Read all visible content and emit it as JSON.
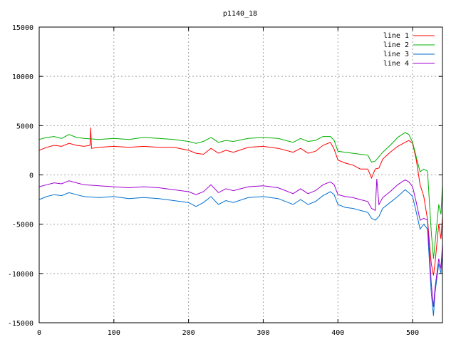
{
  "chart_data": {
    "type": "line",
    "title": "p1140_18",
    "xlabel": "",
    "ylabel": "",
    "xlim": [
      0,
      540
    ],
    "ylim": [
      -15000,
      15000
    ],
    "grid": true,
    "legend_position": "top-right",
    "x_ticks": [
      0,
      100,
      200,
      300,
      400,
      500
    ],
    "y_ticks": [
      -15000,
      -10000,
      -5000,
      0,
      5000,
      10000,
      15000
    ],
    "x_tick_labels": [
      "0",
      "100",
      "200",
      "300",
      "400",
      "500"
    ],
    "y_tick_labels": [
      "-15000",
      "-10000",
      "-5000",
      "0",
      "5000",
      "10000",
      "15000"
    ],
    "series": [
      {
        "name": "line 1",
        "color": "#ff0000",
        "points": [
          [
            0,
            2500
          ],
          [
            10,
            2800
          ],
          [
            20,
            3000
          ],
          [
            30,
            2900
          ],
          [
            40,
            3200
          ],
          [
            50,
            3000
          ],
          [
            60,
            2900
          ],
          [
            68,
            3000
          ],
          [
            69,
            4800
          ],
          [
            70,
            2700
          ],
          [
            80,
            2800
          ],
          [
            100,
            2900
          ],
          [
            120,
            2800
          ],
          [
            140,
            2900
          ],
          [
            160,
            2800
          ],
          [
            180,
            2800
          ],
          [
            200,
            2500
          ],
          [
            210,
            2200
          ],
          [
            220,
            2100
          ],
          [
            230,
            2700
          ],
          [
            240,
            2200
          ],
          [
            250,
            2500
          ],
          [
            260,
            2300
          ],
          [
            280,
            2800
          ],
          [
            300,
            2900
          ],
          [
            320,
            2700
          ],
          [
            340,
            2300
          ],
          [
            350,
            2700
          ],
          [
            360,
            2200
          ],
          [
            370,
            2400
          ],
          [
            380,
            3000
          ],
          [
            390,
            3300
          ],
          [
            395,
            2600
          ],
          [
            400,
            1500
          ],
          [
            410,
            1200
          ],
          [
            420,
            1000
          ],
          [
            430,
            600
          ],
          [
            440,
            600
          ],
          [
            445,
            -300
          ],
          [
            450,
            600
          ],
          [
            455,
            700
          ],
          [
            460,
            1600
          ],
          [
            470,
            2300
          ],
          [
            480,
            2900
          ],
          [
            490,
            3300
          ],
          [
            495,
            3500
          ],
          [
            500,
            3200
          ],
          [
            505,
            1500
          ],
          [
            510,
            -1000
          ],
          [
            515,
            -2200
          ],
          [
            520,
            -4500
          ],
          [
            525,
            -9000
          ],
          [
            528,
            -10200
          ],
          [
            530,
            -9000
          ],
          [
            535,
            -5000
          ],
          [
            538,
            -6500
          ],
          [
            540,
            -4200
          ]
        ]
      },
      {
        "name": "line 2",
        "color": "#00b000",
        "points": [
          [
            0,
            3600
          ],
          [
            10,
            3800
          ],
          [
            20,
            3900
          ],
          [
            30,
            3700
          ],
          [
            40,
            4100
          ],
          [
            50,
            3800
          ],
          [
            60,
            3700
          ],
          [
            80,
            3600
          ],
          [
            100,
            3700
          ],
          [
            120,
            3600
          ],
          [
            140,
            3800
          ],
          [
            160,
            3700
          ],
          [
            180,
            3600
          ],
          [
            200,
            3400
          ],
          [
            210,
            3200
          ],
          [
            220,
            3400
          ],
          [
            230,
            3800
          ],
          [
            240,
            3300
          ],
          [
            250,
            3500
          ],
          [
            260,
            3400
          ],
          [
            280,
            3700
          ],
          [
            300,
            3800
          ],
          [
            320,
            3700
          ],
          [
            340,
            3300
          ],
          [
            350,
            3700
          ],
          [
            360,
            3400
          ],
          [
            370,
            3500
          ],
          [
            380,
            3900
          ],
          [
            390,
            3900
          ],
          [
            395,
            3500
          ],
          [
            400,
            2400
          ],
          [
            410,
            2300
          ],
          [
            420,
            2200
          ],
          [
            430,
            2100
          ],
          [
            440,
            2000
          ],
          [
            445,
            1300
          ],
          [
            450,
            1400
          ],
          [
            460,
            2300
          ],
          [
            470,
            3000
          ],
          [
            480,
            3800
          ],
          [
            490,
            4300
          ],
          [
            495,
            4100
          ],
          [
            500,
            3300
          ],
          [
            505,
            1800
          ],
          [
            510,
            300
          ],
          [
            515,
            600
          ],
          [
            520,
            400
          ],
          [
            525,
            -5800
          ],
          [
            528,
            -8500
          ],
          [
            530,
            -7000
          ],
          [
            535,
            -3000
          ],
          [
            538,
            -4000
          ],
          [
            540,
            -1000
          ]
        ]
      },
      {
        "name": "line 3",
        "color": "#0070d0",
        "points": [
          [
            0,
            -2500
          ],
          [
            10,
            -2200
          ],
          [
            20,
            -2000
          ],
          [
            30,
            -2100
          ],
          [
            40,
            -1800
          ],
          [
            50,
            -2000
          ],
          [
            60,
            -2200
          ],
          [
            80,
            -2300
          ],
          [
            100,
            -2200
          ],
          [
            120,
            -2400
          ],
          [
            140,
            -2300
          ],
          [
            160,
            -2400
          ],
          [
            180,
            -2600
          ],
          [
            200,
            -2800
          ],
          [
            210,
            -3200
          ],
          [
            220,
            -2800
          ],
          [
            230,
            -2200
          ],
          [
            240,
            -3000
          ],
          [
            250,
            -2600
          ],
          [
            260,
            -2800
          ],
          [
            280,
            -2300
          ],
          [
            300,
            -2200
          ],
          [
            320,
            -2400
          ],
          [
            340,
            -3000
          ],
          [
            350,
            -2500
          ],
          [
            360,
            -3000
          ],
          [
            370,
            -2700
          ],
          [
            380,
            -2100
          ],
          [
            390,
            -1700
          ],
          [
            395,
            -2000
          ],
          [
            400,
            -3000
          ],
          [
            410,
            -3300
          ],
          [
            420,
            -3400
          ],
          [
            430,
            -3600
          ],
          [
            440,
            -3800
          ],
          [
            445,
            -4400
          ],
          [
            450,
            -4600
          ],
          [
            455,
            -4200
          ],
          [
            460,
            -3400
          ],
          [
            470,
            -2800
          ],
          [
            480,
            -2200
          ],
          [
            490,
            -1500
          ],
          [
            495,
            -1800
          ],
          [
            500,
            -2200
          ],
          [
            505,
            -3800
          ],
          [
            510,
            -5500
          ],
          [
            515,
            -5000
          ],
          [
            520,
            -5500
          ],
          [
            525,
            -12000
          ],
          [
            528,
            -14300
          ],
          [
            530,
            -12000
          ],
          [
            535,
            -9000
          ],
          [
            538,
            -10000
          ],
          [
            540,
            -7500
          ]
        ]
      },
      {
        "name": "line 4",
        "color": "#a000d0",
        "points": [
          [
            0,
            -1200
          ],
          [
            10,
            -1000
          ],
          [
            20,
            -800
          ],
          [
            30,
            -900
          ],
          [
            40,
            -600
          ],
          [
            50,
            -800
          ],
          [
            60,
            -1000
          ],
          [
            80,
            -1100
          ],
          [
            100,
            -1200
          ],
          [
            120,
            -1300
          ],
          [
            140,
            -1200
          ],
          [
            160,
            -1300
          ],
          [
            180,
            -1500
          ],
          [
            200,
            -1700
          ],
          [
            210,
            -2000
          ],
          [
            220,
            -1700
          ],
          [
            230,
            -1000
          ],
          [
            240,
            -1800
          ],
          [
            250,
            -1400
          ],
          [
            260,
            -1600
          ],
          [
            280,
            -1200
          ],
          [
            300,
            -1100
          ],
          [
            320,
            -1300
          ],
          [
            340,
            -1900
          ],
          [
            350,
            -1400
          ],
          [
            360,
            -1900
          ],
          [
            370,
            -1600
          ],
          [
            380,
            -1000
          ],
          [
            390,
            -700
          ],
          [
            395,
            -1000
          ],
          [
            400,
            -2000
          ],
          [
            410,
            -2200
          ],
          [
            420,
            -2300
          ],
          [
            430,
            -2500
          ],
          [
            440,
            -2700
          ],
          [
            445,
            -3400
          ],
          [
            450,
            -3600
          ],
          [
            452,
            -400
          ],
          [
            455,
            -3000
          ],
          [
            460,
            -2300
          ],
          [
            470,
            -1700
          ],
          [
            480,
            -1000
          ],
          [
            490,
            -500
          ],
          [
            495,
            -700
          ],
          [
            500,
            -1200
          ],
          [
            505,
            -2800
          ],
          [
            510,
            -4600
          ],
          [
            515,
            -4400
          ],
          [
            520,
            -4600
          ],
          [
            525,
            -11000
          ],
          [
            528,
            -13400
          ],
          [
            530,
            -11500
          ],
          [
            535,
            -8500
          ],
          [
            538,
            -9500
          ],
          [
            540,
            -7000
          ]
        ]
      }
    ]
  }
}
